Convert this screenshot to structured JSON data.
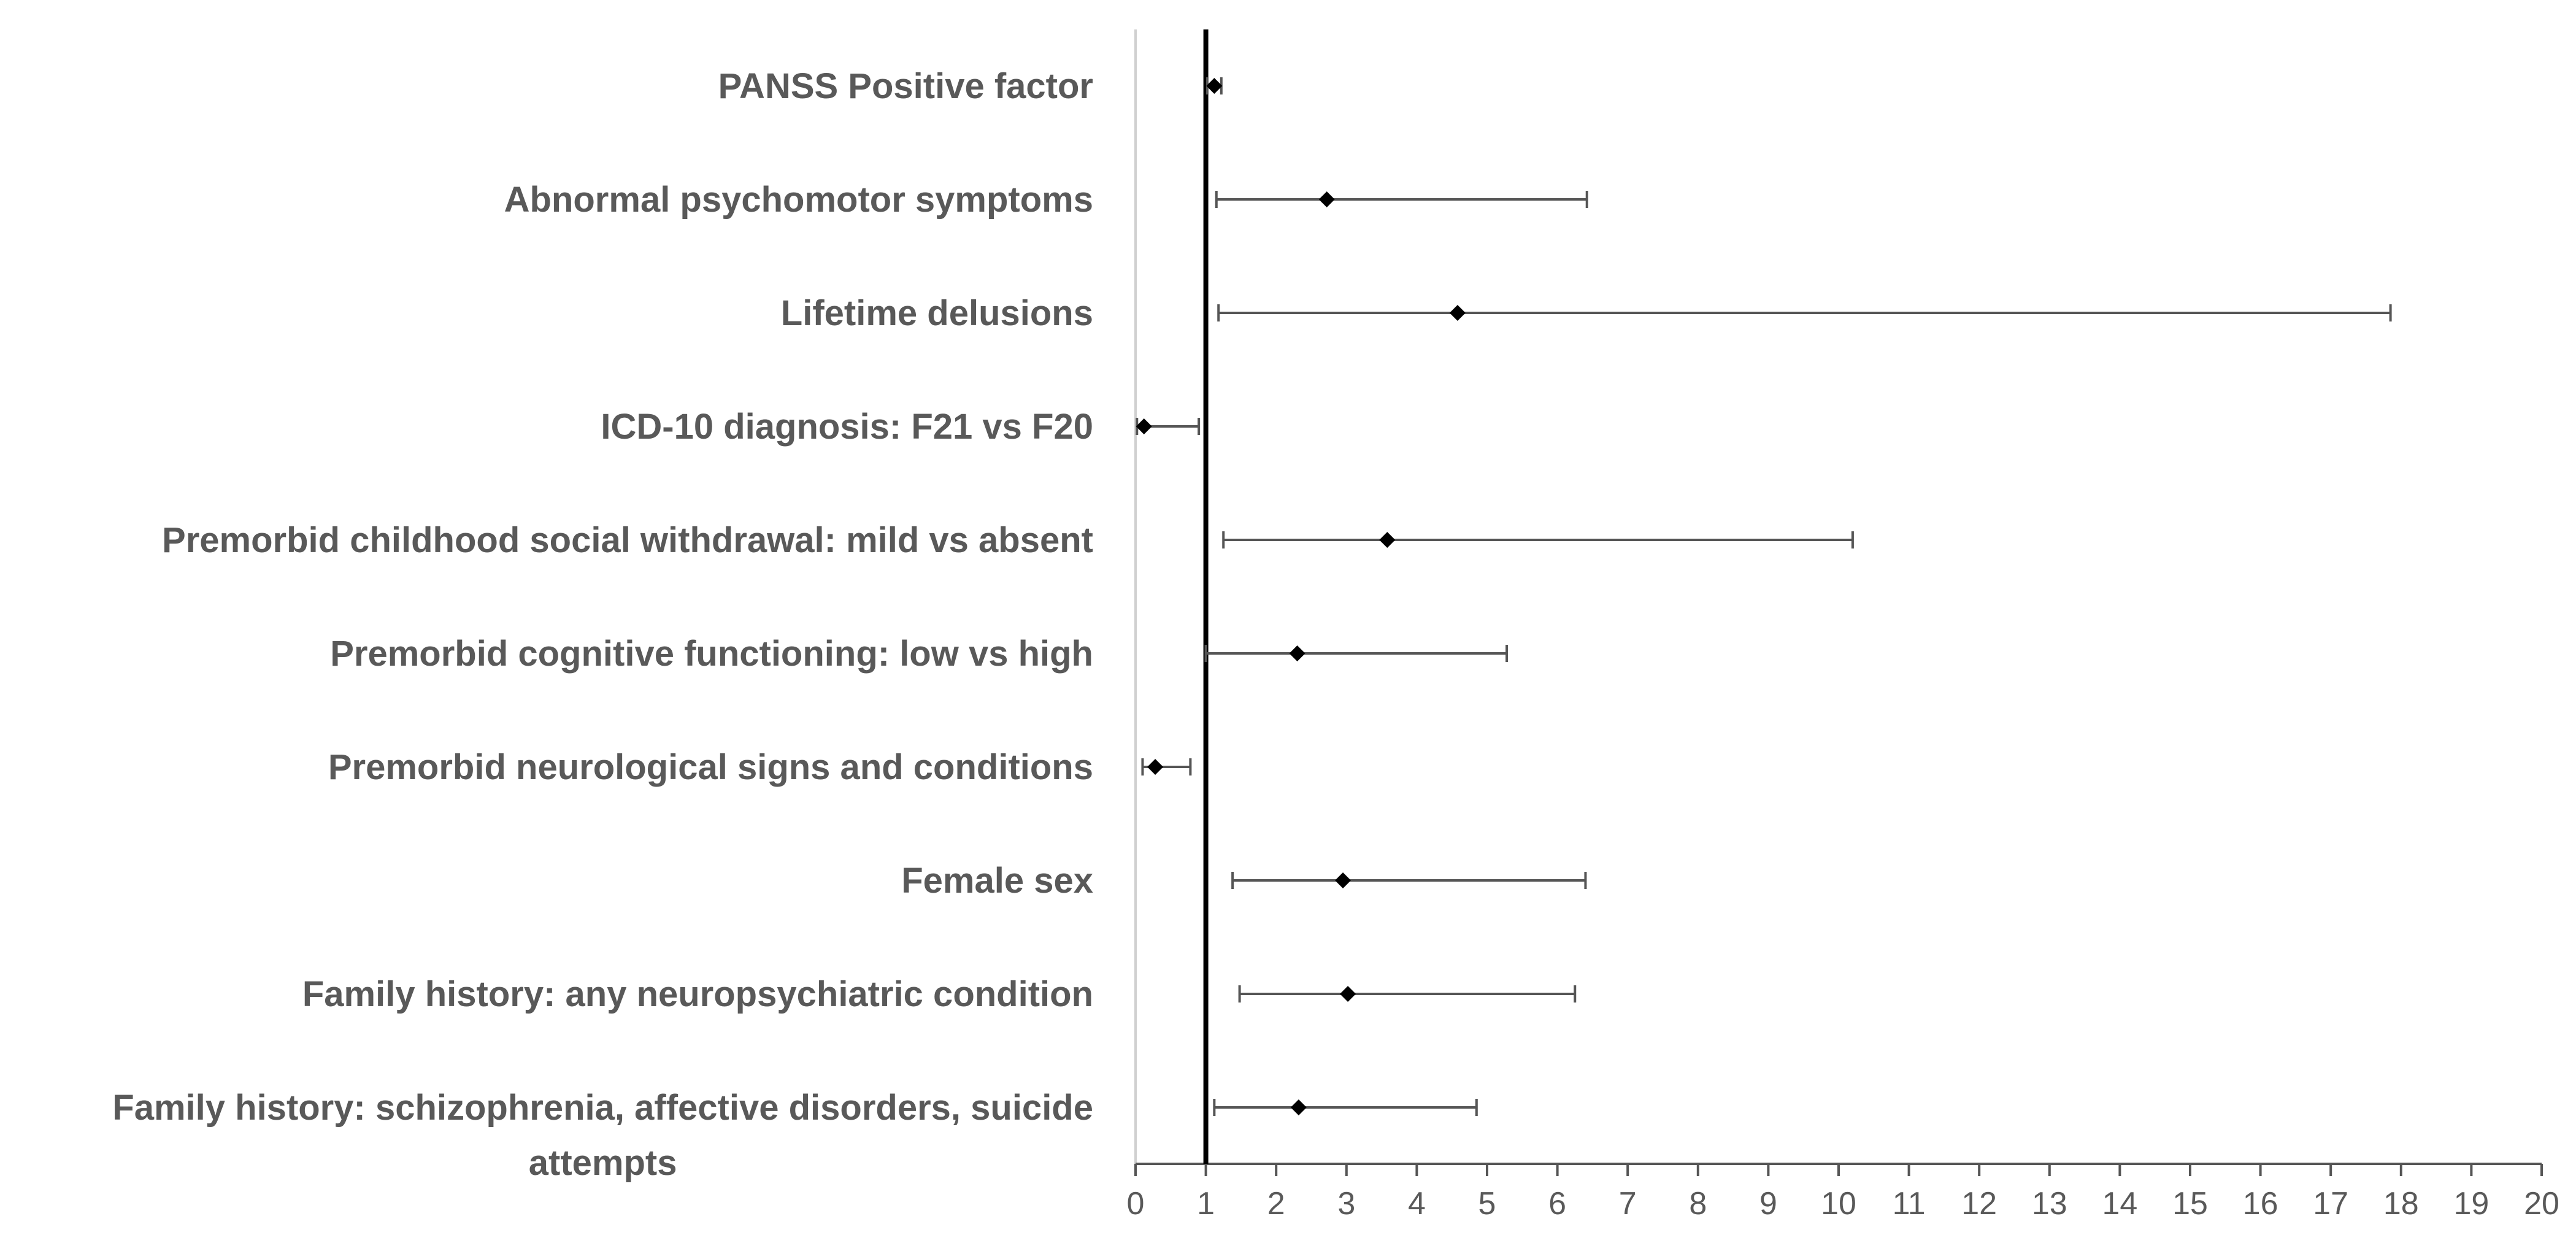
{
  "chart_data": {
    "type": "forest",
    "title": "",
    "xlabel": "",
    "ylabel": "",
    "xlim": [
      0,
      20
    ],
    "xticks": [
      0,
      1,
      2,
      3,
      4,
      5,
      6,
      7,
      8,
      9,
      10,
      11,
      12,
      13,
      14,
      15,
      16,
      17,
      18,
      19,
      20
    ],
    "reference_line": 1,
    "grid": false,
    "rows": [
      {
        "label": "PANSS Positive factor",
        "estimate": 1.12,
        "lower": 1.02,
        "upper": 1.22
      },
      {
        "label": "Abnormal psychomotor symptoms",
        "estimate": 2.72,
        "lower": 1.15,
        "upper": 6.42
      },
      {
        "label": "Lifetime delusions",
        "estimate": 4.58,
        "lower": 1.18,
        "upper": 17.85
      },
      {
        "label": "ICD-10 diagnosis: F21 vs F20",
        "estimate": 0.12,
        "lower": 0.02,
        "upper": 0.9
      },
      {
        "label": "Premorbid childhood social withdrawal: mild vs absent",
        "estimate": 3.58,
        "lower": 1.25,
        "upper": 10.2
      },
      {
        "label": "Premorbid cognitive functioning: low vs high",
        "estimate": 2.3,
        "lower": 1.0,
        "upper": 5.28
      },
      {
        "label": "Premorbid neurological signs and conditions",
        "estimate": 0.28,
        "lower": 0.1,
        "upper": 0.78
      },
      {
        "label": "Female sex",
        "estimate": 2.95,
        "lower": 1.38,
        "upper": 6.4
      },
      {
        "label": "Family  history: any neuropsychiatric condition",
        "estimate": 3.02,
        "lower": 1.48,
        "upper": 6.25
      },
      {
        "label": "Family history: schizophrenia, affective disorders, suicide attempts",
        "estimate": 2.32,
        "lower": 1.12,
        "upper": 4.85
      }
    ]
  }
}
